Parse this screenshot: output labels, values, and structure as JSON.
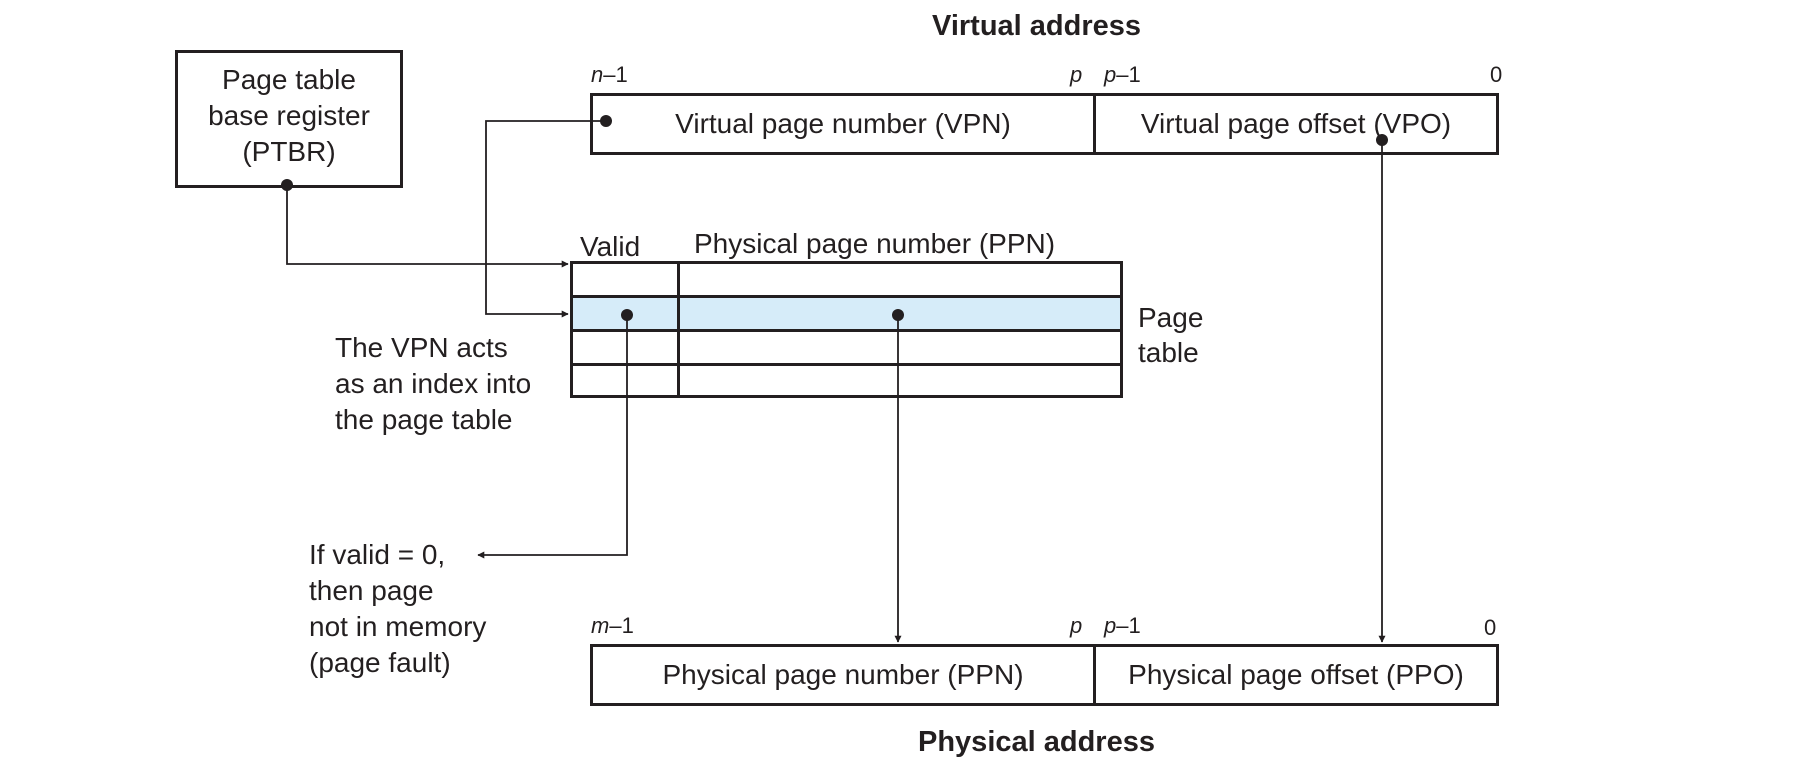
{
  "virtual_address": {
    "title": "Virtual address",
    "vpn_label": "Virtual page number (VPN)",
    "vpo_label": "Virtual page offset (VPO)",
    "bit_high_var": "n",
    "bit_high_suffix": "–1",
    "bit_mid": "p",
    "bit_low_var": "p",
    "bit_low_suffix": "–1",
    "bit_zero": "0"
  },
  "ptbr": {
    "line1": "Page table",
    "line2": "base register",
    "line3": "(PTBR)"
  },
  "page_table": {
    "valid_header": "Valid",
    "ppn_header": "Physical page number (PPN)",
    "label_line1": "Page",
    "label_line2": "table",
    "rows": 4,
    "highlighted_row_index": 1
  },
  "annotations": {
    "vpn_index": [
      "The VPN acts",
      "as an index into",
      "the page table"
    ],
    "page_fault": [
      "If valid = 0,",
      "then page",
      "not in memory",
      "(page fault)"
    ]
  },
  "physical_address": {
    "title": "Physical address",
    "ppn_label": "Physical page number (PPN)",
    "ppo_label": "Physical page offset (PPO)",
    "bit_high_var": "m",
    "bit_high_suffix": "–1",
    "bit_mid": "p",
    "bit_low_var": "p",
    "bit_low_suffix": "–1",
    "bit_zero": "0"
  },
  "colors": {
    "ink": "#231f20",
    "highlight_row": "#d6ecf9"
  }
}
